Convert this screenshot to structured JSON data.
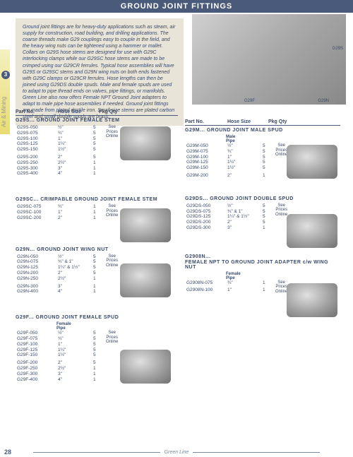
{
  "header": {
    "title": "GROUND JOINT FITTINGS"
  },
  "intro": "Ground joint fittings are for heavy-duty applications such as steam, air supply for construction, road building, and drilling applications. The coarse threads make G29 couplings easy to couple in the field, and the heavy wing nuts can be tightened using a hammer or mallet. Collars on G29S hose stems are designed for use with G29C interlocking clamps while our G29SC hose stems are made to be crimped using our G29CR ferrules. Typical hose assemblies will have G29S or G29SC stems and G29N wing nuts on both ends fastened with G29C clamps or G29CR ferrules. Hose lengths can then be joined using G29DS double spuds. Male and female spuds are used to adapt to pipe thread ends on valves, pipe fittings, or manifolds. Green Line also now offers Female NPT Ground Joint adapters to adapt to male pipe hose assemblies if needed. Ground joint fittings are made from plated ductile iron. Small size stems are plated carbon steel and small double spuds are brass.",
  "side": {
    "num": "3",
    "text": "Air & Mining"
  },
  "cols": {
    "partno": "Part No.",
    "hosesize": "Hose Size",
    "pkgqty": "Pkg Qty"
  },
  "see_prices": "See\nPrices\nOnline",
  "top_image_labels": {
    "a": "G29S",
    "b": "G29F",
    "c": "G29N"
  },
  "sections": {
    "g29s": {
      "title": "G29S... GROUND JOINT FEMALE STEM",
      "rows1": [
        [
          "G29S-050",
          "½\"",
          "5"
        ],
        [
          "G29S-075",
          "¾\"",
          "5"
        ],
        [
          "G29S-100",
          "1\"",
          "5"
        ],
        [
          "G29S-125",
          "1¼\"",
          "5"
        ],
        [
          "G29S-150",
          "1½\"",
          "5"
        ]
      ],
      "rows2": [
        [
          "G29S-200",
          "2\"",
          "5"
        ],
        [
          "G29S-250",
          "2½\"",
          "1"
        ],
        [
          "G29S-300",
          "3\"",
          "1"
        ],
        [
          "G29S-400",
          "4\"",
          "1"
        ]
      ]
    },
    "g29sc": {
      "title": "G29SC... CRIMPABLE GROUND JOINT FEMALE STEM",
      "rows": [
        [
          "G29SC-075",
          "¾\"",
          "1"
        ],
        [
          "G29SC-100",
          "1\"",
          "1"
        ],
        [
          "G29SC-200",
          "2\"",
          "1"
        ]
      ]
    },
    "g29n": {
      "title": "G29N... GROUND JOINT WING NUT",
      "rows1": [
        [
          "G29N-050",
          "½\"",
          "5"
        ],
        [
          "G29N-075",
          "¾\" & 1\"",
          "5"
        ],
        [
          "G29N-125",
          "1¼\" & 1½\"",
          "5"
        ],
        [
          "G29N-200",
          "2\"",
          "5"
        ],
        [
          "G29N-250",
          "2½\"",
          "1"
        ]
      ],
      "rows2": [
        [
          "G29N-300",
          "3\"",
          "1"
        ],
        [
          "G29N-400",
          "4\"",
          "1"
        ]
      ]
    },
    "g29f": {
      "title": "G29F... GROUND JOINT FEMALE SPUD",
      "sub": "Female\nPipe",
      "rows1": [
        [
          "G29F-050",
          "½\"",
          "5"
        ],
        [
          "G29F-075",
          "¾\"",
          "5"
        ],
        [
          "G29F-100",
          "1\"",
          "5"
        ],
        [
          "G29F-125",
          "1¼\"",
          "5"
        ],
        [
          "G29F-150",
          "1½\"",
          "5"
        ]
      ],
      "rows2": [
        [
          "G29F-200",
          "2\"",
          "5"
        ],
        [
          "G29F-250",
          "2½\"",
          "1"
        ],
        [
          "G29F-300",
          "3\"",
          "1"
        ],
        [
          "G29F-400",
          "4\"",
          "1"
        ]
      ]
    },
    "g29m": {
      "title": "G29M... GROUND JOINT MALE SPUD",
      "sub": "Male\nPipe",
      "rows1": [
        [
          "G29M-050",
          "½\"",
          "5"
        ],
        [
          "G29M-075",
          "¾\"",
          "5"
        ],
        [
          "G29M-100",
          "1\"",
          "5"
        ],
        [
          "G29M-125",
          "1¼\"",
          "5"
        ],
        [
          "G29M-150",
          "1½\"",
          "5"
        ]
      ],
      "rows2": [
        [
          "G29M-200",
          "2\"",
          "1"
        ]
      ]
    },
    "g29ds": {
      "title": "G29DS... GROUND JOINT DOUBLE SPUD",
      "rows": [
        [
          "G29DS-050",
          "½\"",
          "5"
        ],
        [
          "G29DS-075",
          "¾\" & 1\"",
          "5"
        ],
        [
          "G29DS-125",
          "1¼\" & 1½\"",
          "5"
        ],
        [
          "G29DS-200",
          "2\"",
          "5"
        ],
        [
          "G29DS-300",
          "3\"",
          "1"
        ]
      ]
    },
    "g2908n": {
      "title": "G2908N...",
      "subtitle": "FEMALE NPT TO GROUND JOINT ADAPTER c/w WING NUT",
      "sub": "Female\nPipe",
      "rows": [
        [
          "G2908N-075",
          "¾\"",
          "1"
        ],
        [
          "G2908N-100",
          "1\"",
          "1"
        ]
      ]
    }
  },
  "footer": {
    "brand": "Green Line",
    "page": "28"
  },
  "colors": {
    "header_bg": "#4a5a7a",
    "intro_bg": "#e8e4d8",
    "text": "#3a4a6a",
    "tab_gradient_start": "#f5f0c0",
    "tab_gradient_end": "#e8dc70"
  }
}
